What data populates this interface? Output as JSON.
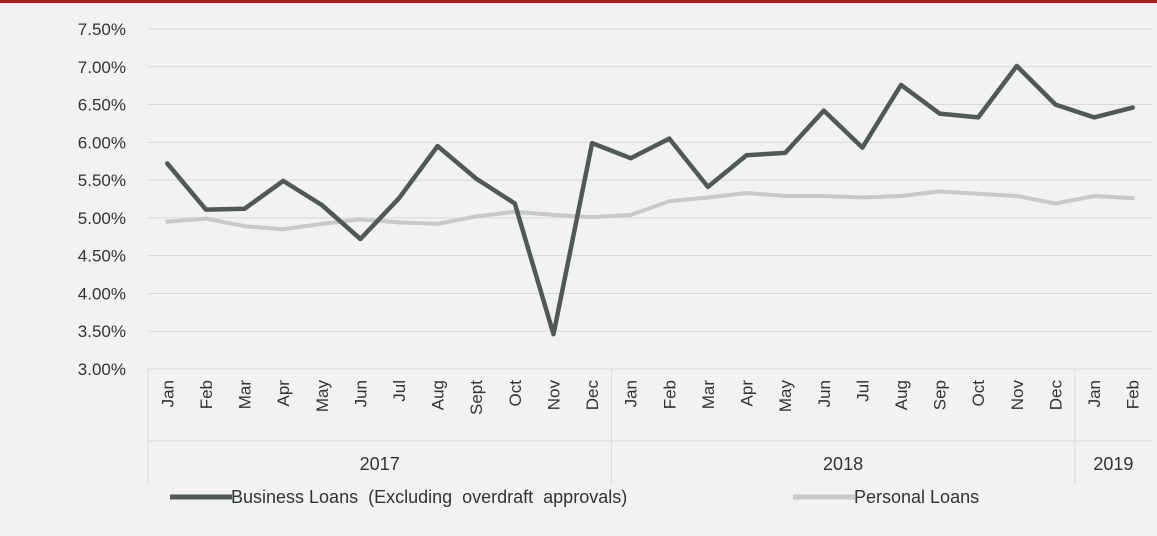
{
  "colors": {
    "top_rule": "#a81e23",
    "background": "#f2f2f2",
    "grid": "#d9d9d9",
    "business": "#4d5a56",
    "personal": "#c9c9cb"
  },
  "chart_data": {
    "type": "line",
    "title": "",
    "xlabel": "",
    "ylabel": "",
    "ylim": [
      3.0,
      7.5
    ],
    "y_ticks": [
      "7.50%",
      "7.00%",
      "6.50%",
      "6.00%",
      "5.50%",
      "5.00%",
      "4.50%",
      "4.00%",
      "3.50%",
      "3.00%"
    ],
    "grid": true,
    "legend_position": "bottom",
    "categories": [
      "Jan",
      "Feb",
      "Mar",
      "Apr",
      "May",
      "Jun",
      "Jul",
      "Aug",
      "Sept",
      "Oct",
      "Nov",
      "Dec",
      "Jan",
      "Feb",
      "Mar",
      "Apr",
      "May",
      "Jun",
      "Jul",
      "Aug",
      "Sep",
      "Oct",
      "Nov",
      "Dec",
      "Jan",
      "Feb"
    ],
    "year_groups": [
      {
        "label": "2017",
        "count": 12
      },
      {
        "label": "2018",
        "count": 12
      },
      {
        "label": "2019",
        "count": 2
      }
    ],
    "series": [
      {
        "name": "Business Loans  (Excluding  overdraft  approvals)",
        "color": "#4d5a56",
        "values": [
          5.72,
          5.11,
          5.12,
          5.49,
          5.17,
          4.72,
          5.26,
          5.95,
          5.52,
          5.19,
          3.46,
          5.99,
          5.79,
          6.05,
          5.41,
          5.83,
          5.86,
          6.42,
          5.93,
          6.76,
          6.38,
          6.33,
          7.01,
          6.5,
          6.33,
          6.46
        ]
      },
      {
        "name": "Personal Loans",
        "color": "#c9c9cb",
        "values": [
          4.95,
          4.99,
          4.89,
          4.85,
          4.92,
          4.98,
          4.94,
          4.92,
          5.02,
          5.08,
          5.04,
          5.01,
          5.04,
          5.22,
          5.27,
          5.33,
          5.29,
          5.29,
          5.27,
          5.29,
          5.35,
          5.32,
          5.29,
          5.19,
          5.29,
          5.26
        ]
      }
    ]
  }
}
